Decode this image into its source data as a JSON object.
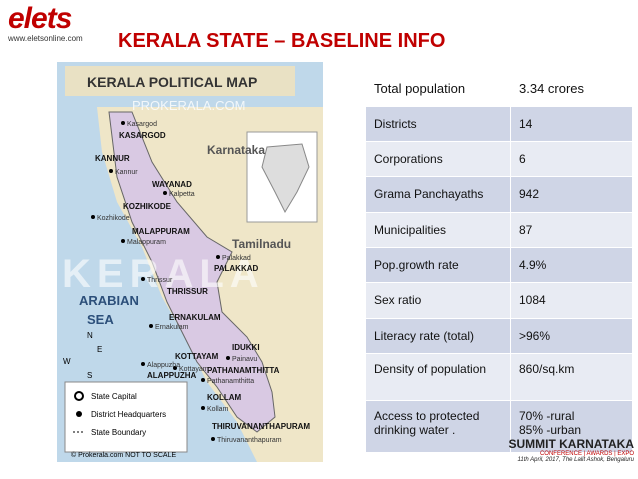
{
  "header": {
    "logo": "elets",
    "url": "www.eletsonline.com"
  },
  "title": "KERALA STATE – BASELINE INFO",
  "map": {
    "title": "KERALA POLITICAL MAP",
    "watermark": "PROKERALA.COM",
    "state_label": "KERALA",
    "neighbors": [
      "Karnataka",
      "Tamilnadu"
    ],
    "sea": [
      "ARABIAN",
      "SEA"
    ],
    "districts": [
      {
        "name": "KASARGOD",
        "hq": "Kasargod"
      },
      {
        "name": "KANNUR",
        "hq": "Kannur"
      },
      {
        "name": "WAYANAD",
        "hq": "Kalpetta"
      },
      {
        "name": "KOZHIKODE",
        "hq": "Kozhikode"
      },
      {
        "name": "MALAPPURAM",
        "hq": "Malappuram"
      },
      {
        "name": "PALAKKAD",
        "hq": "Palakkad"
      },
      {
        "name": "THRISSUR",
        "hq": "Thrissur"
      },
      {
        "name": "ERNAKULAM",
        "hq": "Ernakulam"
      },
      {
        "name": "IDUKKI",
        "hq": "Painavu"
      },
      {
        "name": "KOTTAYAM",
        "hq": "Kottayam"
      },
      {
        "name": "ALAPPUZHA",
        "hq": "Alappuzha"
      },
      {
        "name": "PATHANAMTHITTA",
        "hq": "Pathanamthitta"
      },
      {
        "name": "KOLLAM",
        "hq": "Kollam"
      },
      {
        "name": "THIRUVANANTHAPURAM",
        "hq": "Thiruvananthapuram"
      }
    ],
    "compass": [
      "N",
      "E",
      "W",
      "S"
    ],
    "legend": [
      "State Capital",
      "District Headquarters",
      "State Boundary"
    ],
    "credit": "© Prokerala.com  NOT TO SCALE"
  },
  "table": {
    "rows": [
      [
        "Total population",
        "3.34  crores"
      ],
      [
        "Districts",
        "14"
      ],
      [
        "Corporations",
        "6"
      ],
      [
        "Grama Panchayaths",
        "942"
      ],
      [
        "Municipalities",
        "87"
      ],
      [
        "Pop.growth rate",
        "4.9%"
      ],
      [
        "Sex ratio",
        "1084"
      ],
      [
        "Literacy  rate (total)",
        ">96%"
      ],
      [
        "Density of population",
        "860/sq.km"
      ],
      [
        "Access to protected drinking water .",
        [
          "70% -rural",
          "85% -urban"
        ]
      ]
    ]
  },
  "footer": {
    "event": "SUMMIT KARNATAKA",
    "tagline": "CONFERENCE | AWARDS | EXPO",
    "date": "11th April, 2017, The Lalit Ashok, Bengaluru"
  }
}
